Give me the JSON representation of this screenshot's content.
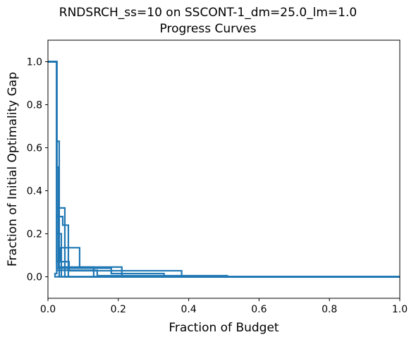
{
  "chart_data": {
    "type": "line",
    "title": "RNDSRCH_ss=10 on SSCONT-1_dm=25.0_lm=1.0",
    "subtitle": "Progress Curves",
    "xlabel": "Fraction of Budget",
    "ylabel": "Fraction of Initial Optimality Gap",
    "xlim": [
      0,
      1
    ],
    "ylim": [
      -0.1,
      1.1
    ],
    "xticks": [
      "0.0",
      "0.2",
      "0.4",
      "0.6",
      "0.8",
      "1.0"
    ],
    "yticks": [
      "0.0",
      "0.2",
      "0.4",
      "0.6",
      "0.8",
      "1.0"
    ],
    "grid": false,
    "legend": "none",
    "line_color": "#1f77b4",
    "step": "post",
    "series": [
      {
        "x": [
          0,
          0.025,
          0.025,
          0.038,
          0.038,
          1.0
        ],
        "y": [
          1.0,
          1.0,
          0.2,
          0.2,
          0.0,
          0.0
        ]
      },
      {
        "x": [
          0,
          0.025,
          0.025,
          0.032,
          0.032,
          1.0
        ],
        "y": [
          1.0,
          1.0,
          0.63,
          0.63,
          0.0,
          0.0
        ]
      },
      {
        "x": [
          0,
          0.025,
          0.025,
          0.03,
          0.03,
          0.13,
          0.13,
          1.0
        ],
        "y": [
          1.0,
          1.0,
          0.51,
          0.51,
          0.045,
          0.045,
          0.0,
          0.0
        ]
      },
      {
        "x": [
          0,
          0.025,
          0.025,
          0.048,
          0.048,
          1.0
        ],
        "y": [
          1.0,
          1.0,
          0.32,
          0.32,
          0.0,
          0.0
        ]
      },
      {
        "x": [
          0,
          0.025,
          0.025,
          0.042,
          0.042,
          0.058,
          0.058,
          1.0
        ],
        "y": [
          1.0,
          1.0,
          0.28,
          0.28,
          0.24,
          0.24,
          0.0,
          0.0
        ]
      },
      {
        "x": [
          0,
          0.025,
          0.025,
          0.035,
          0.035,
          0.09,
          0.09,
          0.21,
          0.21,
          1.0
        ],
        "y": [
          1.0,
          1.0,
          0.07,
          0.07,
          0.135,
          0.135,
          0.045,
          0.045,
          0.0,
          0.0
        ]
      },
      {
        "x": [
          0,
          0.025,
          0.025,
          0.06,
          0.06,
          0.38,
          0.38,
          1.0
        ],
        "y": [
          1.0,
          1.0,
          0.07,
          0.07,
          0.028,
          0.028,
          0.0,
          0.0
        ]
      },
      {
        "x": [
          0,
          0.025,
          0.025,
          0.18,
          0.18,
          0.33,
          0.33,
          1.0
        ],
        "y": [
          1.0,
          1.0,
          0.04,
          0.04,
          0.015,
          0.015,
          0.0,
          0.0
        ]
      },
      {
        "x": [
          0,
          0.025,
          0.025,
          0.14,
          0.14,
          0.51,
          0.51,
          1.0
        ],
        "y": [
          1.0,
          1.0,
          0.03,
          0.03,
          0.005,
          0.005,
          0.0,
          0.0
        ]
      },
      {
        "x": [
          0,
          0.025,
          0.025,
          0.02,
          0.02,
          1.0
        ],
        "y": [
          1.0,
          1.0,
          0.015,
          0.015,
          0.0,
          0.0
        ]
      }
    ]
  }
}
